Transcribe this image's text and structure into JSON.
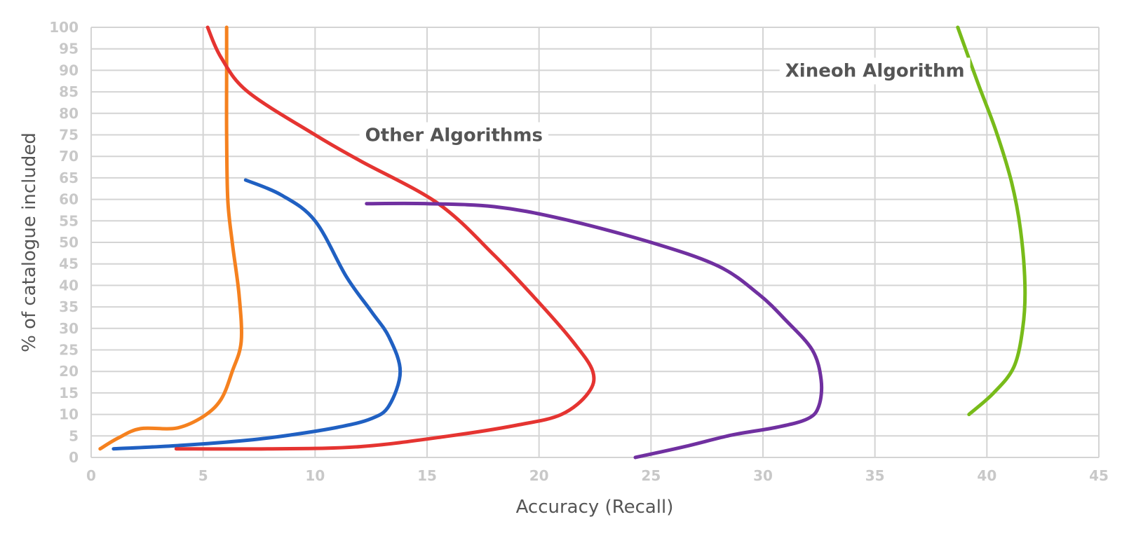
{
  "chart_data": {
    "type": "line",
    "title": "",
    "xlabel": "Accuracy (Recall)",
    "ylabel": "% of catalogue included",
    "xlim": [
      0,
      45
    ],
    "ylim": [
      0,
      100
    ],
    "x_ticks": [
      "0",
      "5",
      "10",
      "15",
      "20",
      "25",
      "30",
      "35",
      "40",
      "45"
    ],
    "y_ticks": [
      "0",
      "5",
      "10",
      "15",
      "20",
      "25",
      "30",
      "35",
      "40",
      "45",
      "50",
      "55",
      "60",
      "65",
      "70",
      "75",
      "80",
      "85",
      "90",
      "95",
      "100"
    ],
    "grid": true,
    "legend": "none",
    "annotations": [
      {
        "text": "Other Algorithms",
        "x": 16.2,
        "y": 75
      },
      {
        "text": "Xineoh Algorithm",
        "x": 35.0,
        "y": 90
      }
    ],
    "series": [
      {
        "color": "#f5811f",
        "points": [
          [
            0.4,
            2
          ],
          [
            1.2,
            4.5
          ],
          [
            2.2,
            6.7
          ],
          [
            3.8,
            6.8
          ],
          [
            5.0,
            9.5
          ],
          [
            5.8,
            13.5
          ],
          [
            6.3,
            20
          ],
          [
            6.7,
            27
          ],
          [
            6.6,
            38
          ],
          [
            6.3,
            50
          ],
          [
            6.1,
            60
          ],
          [
            6.05,
            75
          ],
          [
            6.05,
            90
          ],
          [
            6.05,
            100
          ]
        ]
      },
      {
        "color": "#2060c2",
        "points": [
          [
            1.0,
            2
          ],
          [
            4.0,
            2.8
          ],
          [
            7.0,
            4
          ],
          [
            9.0,
            5.3
          ],
          [
            11.0,
            7
          ],
          [
            12.5,
            9
          ],
          [
            13.3,
            12
          ],
          [
            13.8,
            20
          ],
          [
            13.3,
            28
          ],
          [
            12.5,
            34
          ],
          [
            11.4,
            42
          ],
          [
            10.0,
            55
          ],
          [
            8.5,
            61
          ],
          [
            6.9,
            64.5
          ]
        ]
      },
      {
        "color": "#e53431",
        "points": [
          [
            3.8,
            2
          ],
          [
            8.0,
            2
          ],
          [
            12.0,
            2.5
          ],
          [
            16.0,
            5
          ],
          [
            19.0,
            7.5
          ],
          [
            21.0,
            10
          ],
          [
            22.2,
            15
          ],
          [
            22.4,
            20
          ],
          [
            21.5,
            27
          ],
          [
            20.0,
            36
          ],
          [
            18.0,
            47
          ],
          [
            15.5,
            59
          ],
          [
            12.0,
            69
          ],
          [
            10.0,
            75
          ],
          [
            7.0,
            85
          ],
          [
            5.8,
            93
          ],
          [
            5.2,
            100
          ]
        ]
      },
      {
        "color": "#7030a0",
        "points": [
          [
            24.3,
            0
          ],
          [
            26.5,
            2.5
          ],
          [
            28.6,
            5.2
          ],
          [
            30.6,
            7
          ],
          [
            32.0,
            9
          ],
          [
            32.5,
            12
          ],
          [
            32.6,
            18
          ],
          [
            32.2,
            25
          ],
          [
            31.0,
            32
          ],
          [
            29.8,
            38
          ],
          [
            28.0,
            44.5
          ],
          [
            25.0,
            50
          ],
          [
            21.0,
            55.5
          ],
          [
            18.0,
            58.3
          ],
          [
            15.0,
            59
          ],
          [
            12.3,
            59
          ]
        ]
      },
      {
        "color": "#78bb1a",
        "points": [
          [
            39.2,
            10
          ],
          [
            40.3,
            15
          ],
          [
            41.2,
            21
          ],
          [
            41.6,
            30
          ],
          [
            41.7,
            40
          ],
          [
            41.5,
            53
          ],
          [
            41.1,
            64
          ],
          [
            40.4,
            76
          ],
          [
            39.6,
            87
          ],
          [
            38.7,
            100
          ]
        ]
      }
    ]
  }
}
